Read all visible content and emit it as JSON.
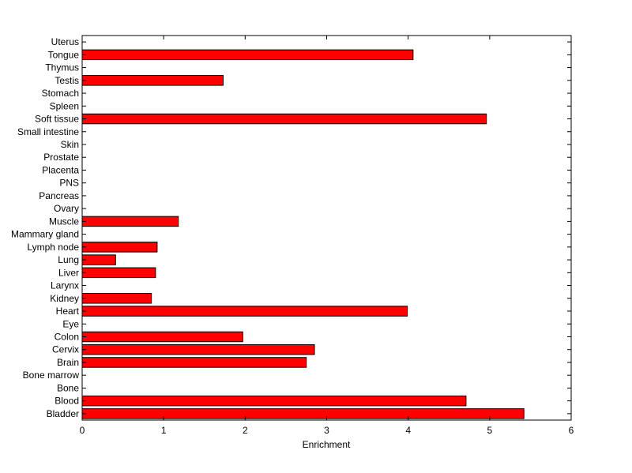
{
  "chart_data": {
    "type": "bar",
    "orientation": "horizontal",
    "title": "",
    "xlabel": "Enrichment",
    "ylabel": "",
    "xlim": [
      0,
      6
    ],
    "xticks": [
      "0",
      "1",
      "2",
      "3",
      "4",
      "5",
      "6"
    ],
    "bar_color": "#ff0000",
    "grid": false,
    "categories": [
      "Bladder",
      "Blood",
      "Bone",
      "Bone marrow",
      "Brain",
      "Cervix",
      "Colon",
      "Eye",
      "Heart",
      "Kidney",
      "Larynx",
      "Liver",
      "Lung",
      "Lymph node",
      "Mammary gland",
      "Muscle",
      "Ovary",
      "Pancreas",
      "PNS",
      "Placenta",
      "Prostate",
      "Skin",
      "Small intestine",
      "Soft tissue",
      "Spleen",
      "Stomach",
      "Testis",
      "Thymus",
      "Tongue",
      "Uterus"
    ],
    "values": [
      5.42,
      4.71,
      0,
      0,
      2.75,
      2.85,
      1.97,
      0,
      3.99,
      0.85,
      0,
      0.9,
      0.41,
      0.92,
      0,
      1.18,
      0,
      0,
      0,
      0,
      0,
      0,
      0,
      4.96,
      0,
      0,
      1.73,
      0,
      4.06,
      0
    ]
  }
}
